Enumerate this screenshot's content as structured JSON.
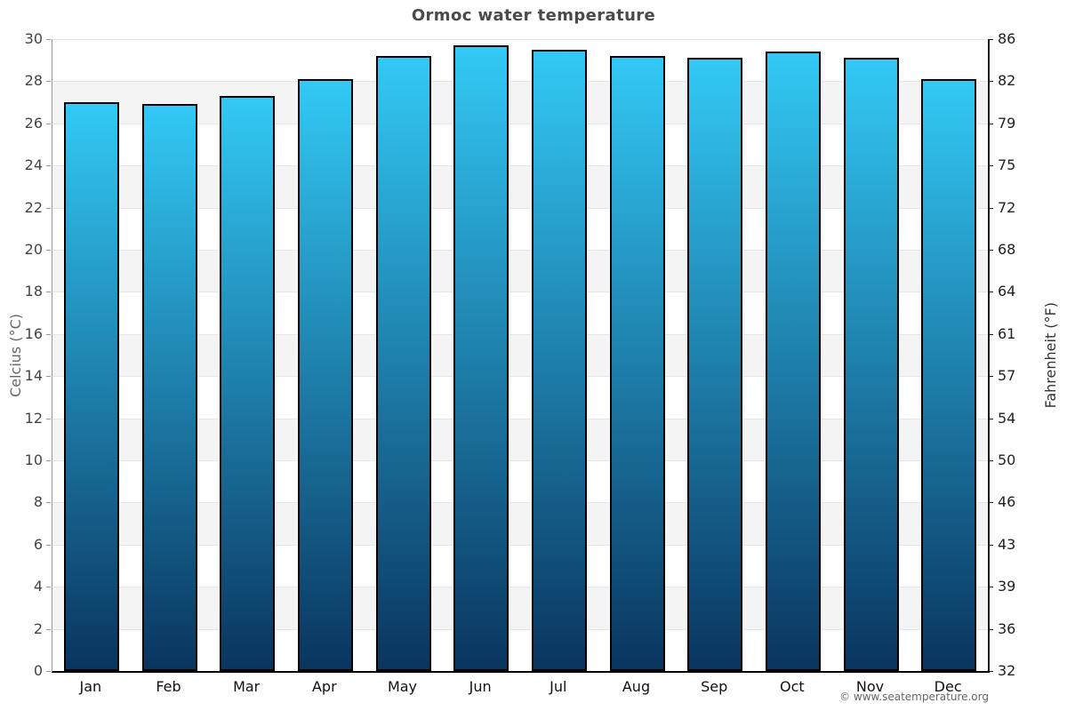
{
  "header": {
    "title": "Ormoc water temperature"
  },
  "footer": {
    "credit": "© www.seatemperature.org"
  },
  "chart_data": {
    "type": "bar",
    "title": "Ormoc water temperature",
    "categories": [
      "Jan",
      "Feb",
      "Mar",
      "Apr",
      "May",
      "Jun",
      "Jul",
      "Aug",
      "Sep",
      "Oct",
      "Nov",
      "Dec"
    ],
    "values": [
      27.0,
      26.9,
      27.3,
      28.1,
      29.2,
      29.7,
      29.5,
      29.2,
      29.1,
      29.4,
      29.1,
      28.1
    ],
    "unit": "°C",
    "ylabel_left": "Celcius (°C)",
    "ylabel_right": "Fahrenheit (°F)",
    "ylim_celsius": [
      0,
      30
    ],
    "yticks_celsius": [
      30,
      28,
      26,
      24,
      22,
      20,
      18,
      16,
      14,
      12,
      10,
      8,
      6,
      4,
      2,
      0
    ],
    "yticks_fahrenheit": [
      86,
      82,
      79,
      75,
      72,
      68,
      64,
      61,
      57,
      54,
      50,
      46,
      43,
      39,
      36,
      32
    ],
    "legend": "none",
    "grid": "horizontal alternating bands every 2°C",
    "colors": {
      "bar_gradient_top": "#33c9f6",
      "bar_gradient_bottom": "#09355f",
      "bar_border": "#000000",
      "band_white": "#ffffff",
      "band_gray": "#f4f4f4",
      "gridline": "#e6e6e6",
      "title_text": "#4a4a4a",
      "axis_right_line": "#1a1a1a",
      "axis_left_line": "#999999"
    }
  }
}
